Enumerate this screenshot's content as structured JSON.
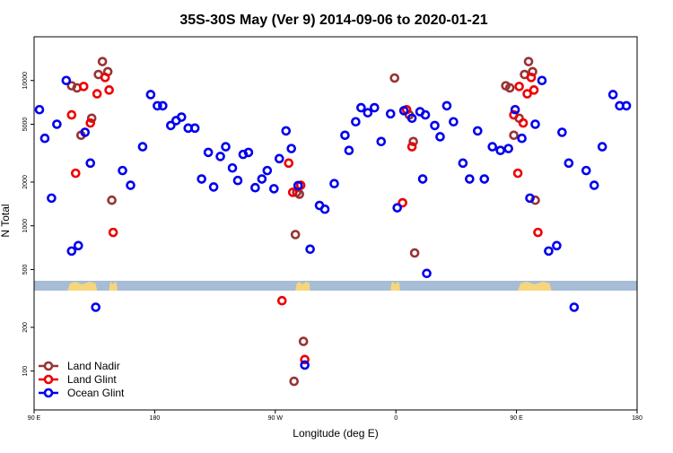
{
  "chart_data": {
    "type": "scatter",
    "title": "35S-30S May (Ver 9)   2014-09-06 to 2020-01-21",
    "xlabel": "Longitude (deg E)",
    "ylabel": "N Total",
    "x_scale": "linear",
    "y_scale": "log",
    "xlim": [
      90,
      540
    ],
    "ylim": [
      54,
      20000
    ],
    "x_ticks": [
      {
        "value": 90,
        "label": "90 E"
      },
      {
        "value": 180,
        "label": "180"
      },
      {
        "value": 270,
        "label": "90 W"
      },
      {
        "value": 360,
        "label": "0"
      },
      {
        "value": 450,
        "label": "90 E"
      },
      {
        "value": 540,
        "label": "180"
      }
    ],
    "y_ticks": [
      {
        "value": 100,
        "label": "100"
      },
      {
        "value": 200,
        "label": "200"
      },
      {
        "value": 500,
        "label": "500"
      },
      {
        "value": 1000,
        "label": "1000"
      },
      {
        "value": 2000,
        "label": "2000"
      },
      {
        "value": 5000,
        "label": "5000"
      },
      {
        "value": 10000,
        "label": "10000"
      }
    ],
    "legend_position": "bottom-left",
    "grid": false,
    "map_strip": {
      "ocean_color": "#a7bdd6",
      "land_color": "#f6d67c"
    },
    "series": [
      {
        "name": "Land Nadir",
        "color": "#993333",
        "points": [
          [
            118,
            9200
          ],
          [
            122,
            8900
          ],
          [
            125,
            4200
          ],
          [
            133,
            5500
          ],
          [
            138,
            11000
          ],
          [
            141,
            13500
          ],
          [
            145,
            11500
          ],
          [
            148,
            1500
          ],
          [
            285,
            870
          ],
          [
            286,
            1700
          ],
          [
            288,
            1650
          ],
          [
            291,
            160
          ],
          [
            284,
            85
          ],
          [
            359,
            10400
          ],
          [
            370,
            5800
          ],
          [
            373,
            3800
          ],
          [
            374,
            650
          ],
          [
            442,
            9200
          ],
          [
            445,
            8900
          ],
          [
            448,
            4200
          ],
          [
            452,
            5500
          ],
          [
            456,
            11000
          ],
          [
            459,
            13500
          ],
          [
            462,
            11500
          ],
          [
            464,
            1500
          ]
        ]
      },
      {
        "name": "Land Glint",
        "color": "#ee0000",
        "points": [
          [
            118,
            5800
          ],
          [
            121,
            2300
          ],
          [
            127,
            9100
          ],
          [
            132,
            5100
          ],
          [
            137,
            8100
          ],
          [
            143,
            10500
          ],
          [
            146,
            8600
          ],
          [
            149,
            900
          ],
          [
            275,
            305
          ],
          [
            280,
            2700
          ],
          [
            283,
            1700
          ],
          [
            289,
            1900
          ],
          [
            292,
            120
          ],
          [
            365,
            1440
          ],
          [
            368,
            6300
          ],
          [
            372,
            3500
          ],
          [
            448,
            5800
          ],
          [
            451,
            2300
          ],
          [
            452,
            9100
          ],
          [
            455,
            5100
          ],
          [
            458,
            8100
          ],
          [
            461,
            10500
          ],
          [
            463,
            8600
          ],
          [
            466,
            900
          ]
        ]
      },
      {
        "name": "Ocean Glint",
        "color": "#0000ee",
        "points": [
          [
            94,
            6300
          ],
          [
            98,
            4000
          ],
          [
            103,
            1550
          ],
          [
            107,
            5000
          ],
          [
            114,
            10000
          ],
          [
            118,
            670
          ],
          [
            123,
            730
          ],
          [
            128,
            4400
          ],
          [
            132,
            2700
          ],
          [
            136,
            275
          ],
          [
            156,
            2400
          ],
          [
            162,
            1900
          ],
          [
            171,
            3500
          ],
          [
            177,
            8000
          ],
          [
            182,
            6700
          ],
          [
            186,
            6700
          ],
          [
            192,
            4900
          ],
          [
            196,
            5300
          ],
          [
            200,
            5600
          ],
          [
            205,
            4700
          ],
          [
            210,
            4700
          ],
          [
            215,
            2100
          ],
          [
            220,
            3200
          ],
          [
            224,
            1850
          ],
          [
            229,
            3000
          ],
          [
            233,
            3500
          ],
          [
            238,
            2500
          ],
          [
            242,
            2050
          ],
          [
            246,
            3100
          ],
          [
            250,
            3200
          ],
          [
            255,
            1830
          ],
          [
            260,
            2100
          ],
          [
            264,
            2400
          ],
          [
            269,
            1800
          ],
          [
            273,
            2900
          ],
          [
            278,
            4500
          ],
          [
            282,
            3400
          ],
          [
            287,
            1890
          ],
          [
            292,
            110
          ],
          [
            296,
            690
          ],
          [
            303,
            1380
          ],
          [
            307,
            1300
          ],
          [
            314,
            1950
          ],
          [
            322,
            4200
          ],
          [
            325,
            3300
          ],
          [
            330,
            5200
          ],
          [
            334,
            6500
          ],
          [
            339,
            6000
          ],
          [
            344,
            6500
          ],
          [
            349,
            3800
          ],
          [
            356,
            5900
          ],
          [
            361,
            1330
          ],
          [
            366,
            6200
          ],
          [
            372,
            5500
          ],
          [
            378,
            6100
          ],
          [
            380,
            2100
          ],
          [
            382,
            5800
          ],
          [
            389,
            4900
          ],
          [
            393,
            4100
          ],
          [
            398,
            6700
          ],
          [
            403,
            5200
          ],
          [
            410,
            2700
          ],
          [
            415,
            2100
          ],
          [
            421,
            4500
          ],
          [
            426,
            2100
          ],
          [
            432,
            3500
          ],
          [
            438,
            3300
          ],
          [
            444,
            3400
          ],
          [
            449,
            6300
          ],
          [
            454,
            4000
          ],
          [
            460,
            1550
          ],
          [
            464,
            5000
          ],
          [
            469,
            10000
          ],
          [
            474,
            670
          ],
          [
            480,
            730
          ],
          [
            484,
            4400
          ],
          [
            489,
            2700
          ],
          [
            493,
            275
          ],
          [
            502,
            2400
          ],
          [
            508,
            1900
          ],
          [
            514,
            3500
          ],
          [
            522,
            8000
          ],
          [
            527,
            6700
          ],
          [
            532,
            6700
          ],
          [
            383,
            470
          ]
        ]
      }
    ]
  }
}
